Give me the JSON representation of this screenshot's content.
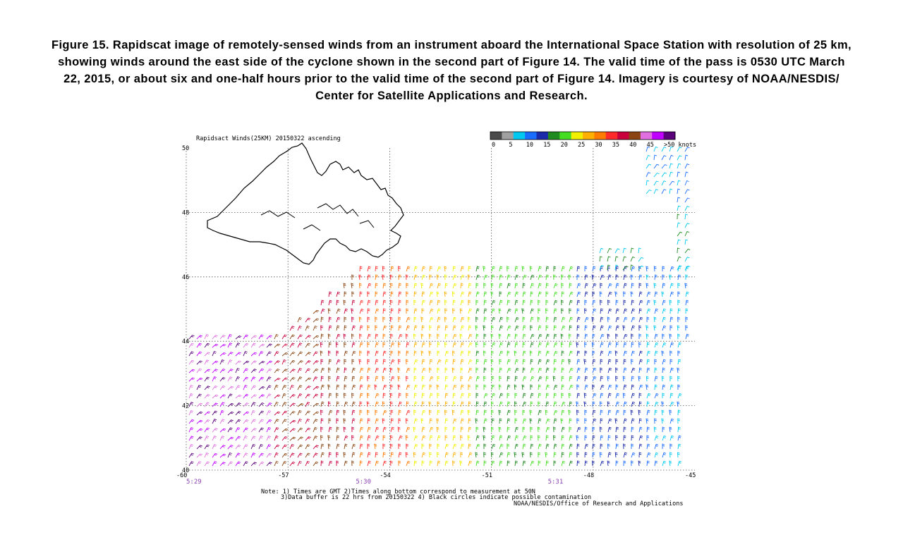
{
  "caption": "Figure 15. Rapidscat image of remotely-sensed winds from an instrument aboard the International Space Station with resolution of 25 km, showing winds around the east side of the cyclone shown in the second part of Figure 14. The valid time of the pass is 0530 UTC March 22, 2015, or about six and one-half hours prior to the valid time of the second part of Figure 14. Imagery is courtesy of NOAA/NESDIS/ Center for Satellite Applications and Research.",
  "map": {
    "title": "Rapidsact Winds(25KM) 20150322 ascending",
    "lat_labels": [
      "50",
      "48",
      "46",
      "44",
      "42",
      "40"
    ],
    "lon_labels": [
      "-60",
      "-57",
      "-54",
      "-51",
      "-48",
      "-45"
    ],
    "pass_times": [
      "5:29",
      "5:30",
      "5:31"
    ],
    "colorbar": {
      "colors": [
        "#4a4a4a",
        "#a0a0a0",
        "#00c8f0",
        "#1a6cff",
        "#1a2aa8",
        "#1f8a1f",
        "#44dd22",
        "#f0f000",
        "#ffb000",
        "#ff7a00",
        "#ff2a2a",
        "#c8003c",
        "#8b4513",
        "#e070e0",
        "#c000ff",
        "#5a007a"
      ],
      "labels": [
        "0",
        "5",
        "10",
        "15",
        "20",
        "25",
        "30",
        "35",
        "40",
        "45",
        ">50 knots"
      ]
    },
    "notes": [
      "Note: 1) Times are GMT 2)Times along bottom correspond to measurement at 50N",
      "3)Data buffer is 22 hrs from 20150322 4) Black circles indicate possible contamination",
      "NOAA/NESDIS/Office of Research and Applications"
    ]
  }
}
